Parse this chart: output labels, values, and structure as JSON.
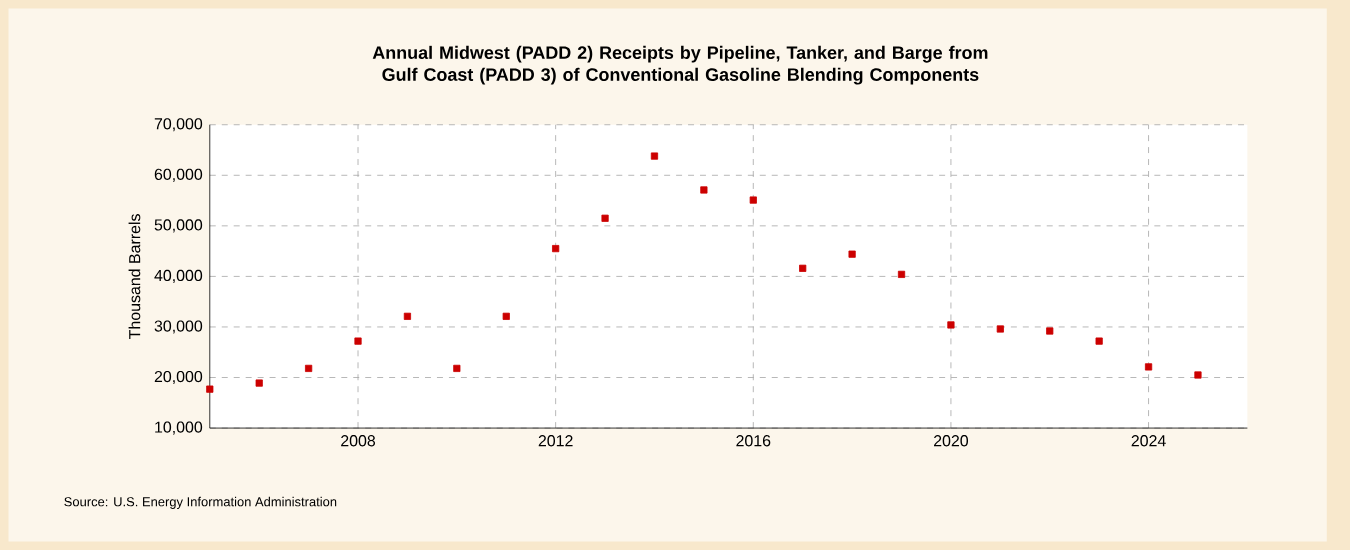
{
  "chart_data": {
    "type": "scatter",
    "title": "Annual Midwest (PADD 2) Receipts by Pipeline, Tanker, and Barge from Gulf Coast (PADD 3) of Conventional Gasoline Blending Components",
    "ylabel": "Thousand Barrels",
    "annotations": [
      "Source: U.S. Energy Information Administration"
    ],
    "x": [
      2005,
      2006,
      2007,
      2008,
      2009,
      2010,
      2011,
      2012,
      2013,
      2014,
      2015,
      2016,
      2017,
      2018,
      2019,
      2020,
      2021,
      2022,
      2023,
      2024,
      2025
    ],
    "values": [
      17700,
      18900,
      21800,
      27200,
      32100,
      21800,
      32100,
      45500,
      51500,
      63800,
      57100,
      55100,
      41600,
      44400,
      40400,
      30400,
      29600,
      29200,
      27200,
      22100,
      20500
    ],
    "color": "#cc0000",
    "marker": "square",
    "xlim": [
      2005,
      2026
    ],
    "xticks": [
      2008,
      2012,
      2016,
      2020,
      2024
    ],
    "ylim": [
      10000,
      70000
    ],
    "yticks": [
      {
        "value": 10000,
        "label": "10,000"
      },
      {
        "value": 20000,
        "label": "20,000"
      },
      {
        "value": 30000,
        "label": "30,000"
      },
      {
        "value": 40000,
        "label": "40,000"
      },
      {
        "value": 50000,
        "label": "50,000"
      },
      {
        "value": 60000,
        "label": "60,000"
      },
      {
        "value": 70000,
        "label": "70,000"
      }
    ],
    "grid": true
  }
}
